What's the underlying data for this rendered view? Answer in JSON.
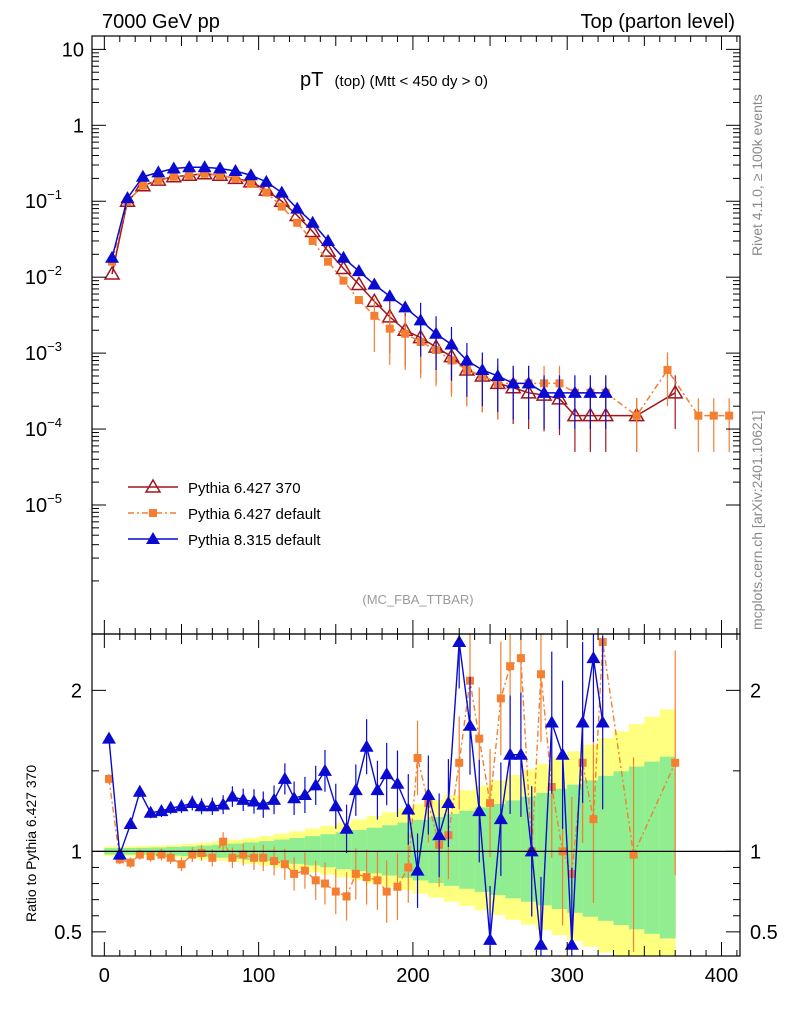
{
  "header": {
    "left": "7000 GeV pp",
    "right": "Top (parton level)"
  },
  "side_labels": {
    "rivet": "Rivet 4.1.0, ≥ 100k events",
    "mcplots": "mcplots.cern.ch [arXiv:2401.10621]"
  },
  "chart_data": {
    "type": "line",
    "title_main": "pT",
    "title_sub": "(top)  (Mtt < 450 dy > 0)",
    "analysis": "(MC_FBA_TTBAR)",
    "xlabel": "",
    "ylabel": "",
    "ratio_ylabel": "Ratio to Pythia 6.427 370",
    "xlim": [
      -8,
      412
    ],
    "ylim_log": [
      2e-07,
      15
    ],
    "ratio_ylim": [
      0.35,
      2.35
    ],
    "y_ticks": [
      {
        "label": "10",
        "exp": "",
        "value": 10
      },
      {
        "label": "1",
        "exp": "",
        "value": 1
      },
      {
        "label": "10",
        "exp": "−1",
        "value": 0.1
      },
      {
        "label": "10",
        "exp": "−2",
        "value": 0.01
      },
      {
        "label": "10",
        "exp": "−3",
        "value": 0.001
      },
      {
        "label": "10",
        "exp": "−4",
        "value": 0.0001
      },
      {
        "label": "10",
        "exp": "−5",
        "value": 1e-05
      }
    ],
    "ratio_ticks": [
      {
        "label": "2",
        "value": 2
      },
      {
        "label": "1",
        "value": 1
      },
      {
        "label": "0.5",
        "value": 0.5
      }
    ],
    "x_ticks": [
      {
        "label": "0",
        "value": 0
      },
      {
        "label": "100",
        "value": 100
      },
      {
        "label": "200",
        "value": 200
      },
      {
        "label": "300",
        "value": 300
      },
      {
        "label": "400",
        "value": 400
      }
    ],
    "legend": [
      {
        "name": "Pythia 6.427 370",
        "color": "#a0161c",
        "marker": "open-triangle"
      },
      {
        "name": "Pythia 6.427 default",
        "color": "#f47f31",
        "marker": "square"
      },
      {
        "name": "Pythia 8.315 default",
        "color": "#0a0ad0",
        "marker": "filled-triangle"
      }
    ],
    "series": [
      {
        "name": "Pythia 6.427 370",
        "x": [
          5,
          15,
          25,
          35,
          45,
          55,
          65,
          75,
          85,
          95,
          105,
          115,
          125,
          135,
          145,
          155,
          165,
          175,
          185,
          195,
          205,
          215,
          225,
          235,
          245,
          255,
          265,
          275,
          285,
          295,
          305,
          315,
          325,
          345,
          370
        ],
        "y": [
          0.011,
          0.1,
          0.16,
          0.19,
          0.21,
          0.22,
          0.23,
          0.22,
          0.2,
          0.18,
          0.14,
          0.1,
          0.065,
          0.04,
          0.022,
          0.013,
          0.008,
          0.0048,
          0.003,
          0.002,
          0.0016,
          0.0012,
          0.0009,
          0.0006,
          0.0005,
          0.0004,
          0.00035,
          0.0003,
          0.00028,
          0.00025,
          0.00015,
          0.00015,
          0.00015,
          0.00015,
          0.0003
        ]
      },
      {
        "name": "Pythia 6.427 default",
        "x": [
          5,
          15,
          25,
          35,
          45,
          55,
          65,
          75,
          85,
          95,
          105,
          115,
          125,
          135,
          145,
          155,
          165,
          175,
          185,
          195,
          205,
          215,
          225,
          235,
          245,
          255,
          265,
          275,
          285,
          295,
          305,
          315,
          325,
          345,
          365,
          385,
          395,
          405
        ],
        "y": [
          0.016,
          0.1,
          0.16,
          0.19,
          0.21,
          0.22,
          0.23,
          0.22,
          0.2,
          0.17,
          0.13,
          0.085,
          0.052,
          0.03,
          0.016,
          0.009,
          0.005,
          0.0031,
          0.0021,
          0.0018,
          0.0014,
          0.0011,
          0.0008,
          0.0006,
          0.0005,
          0.0004,
          0.0004,
          0.0004,
          0.0004,
          0.0004,
          0.0003,
          0.0003,
          0.0003,
          0.00015,
          0.0006,
          0.00015,
          0.00015,
          0.00015
        ]
      },
      {
        "name": "Pythia 8.315 default",
        "x": [
          5,
          15,
          25,
          35,
          45,
          55,
          65,
          75,
          85,
          95,
          105,
          115,
          125,
          135,
          145,
          155,
          165,
          175,
          185,
          195,
          205,
          215,
          225,
          235,
          245,
          255,
          265,
          275,
          285,
          295,
          305,
          315,
          325
        ],
        "y": [
          0.018,
          0.11,
          0.21,
          0.24,
          0.27,
          0.28,
          0.28,
          0.27,
          0.25,
          0.22,
          0.18,
          0.13,
          0.08,
          0.052,
          0.03,
          0.018,
          0.012,
          0.008,
          0.0056,
          0.004,
          0.0027,
          0.0018,
          0.0013,
          0.0008,
          0.0006,
          0.0005,
          0.0004,
          0.0004,
          0.0003,
          0.0003,
          0.0003,
          0.0003,
          0.0003
        ]
      }
    ],
    "ratio_series": [
      {
        "name": "Pythia 6.427 default",
        "x": [
          3,
          10,
          17,
          23,
          30,
          37,
          43,
          50,
          57,
          63,
          70,
          77,
          83,
          90,
          97,
          103,
          110,
          117,
          123,
          130,
          137,
          143,
          150,
          157,
          163,
          170,
          177,
          183,
          190,
          197,
          203,
          210,
          217,
          223,
          230,
          237,
          243,
          250,
          257,
          263,
          270,
          277,
          283,
          290,
          297,
          303,
          310,
          317,
          323,
          343,
          370
        ],
        "y": [
          1.45,
          0.95,
          0.93,
          0.98,
          0.97,
          0.98,
          0.96,
          0.92,
          0.98,
          0.99,
          0.96,
          1.06,
          0.96,
          0.98,
          0.96,
          0.96,
          0.94,
          0.92,
          0.86,
          0.88,
          0.82,
          0.8,
          0.75,
          0.72,
          0.86,
          0.84,
          0.82,
          0.75,
          0.78,
          0.9,
          1.58,
          1.3,
          1.04,
          1.1,
          1.55,
          2.06,
          1.7,
          1.3,
          1.95,
          2.15,
          2.2,
          1.0,
          2.1,
          1.4,
          1.0,
          0.86,
          1.55,
          1.2,
          2.3,
          0.98,
          1.55
        ]
      },
      {
        "name": "Pythia 8.315 default",
        "x": [
          3,
          10,
          17,
          23,
          30,
          37,
          43,
          50,
          57,
          63,
          70,
          77,
          83,
          90,
          97,
          103,
          110,
          117,
          123,
          130,
          137,
          143,
          150,
          157,
          163,
          170,
          177,
          183,
          190,
          197,
          203,
          210,
          217,
          223,
          230,
          237,
          243,
          250,
          257,
          263,
          270,
          277,
          283,
          290,
          297,
          303,
          310,
          317,
          323
        ],
        "y": [
          1.7,
          0.98,
          1.17,
          1.37,
          1.24,
          1.25,
          1.27,
          1.28,
          1.3,
          1.28,
          1.28,
          1.29,
          1.34,
          1.32,
          1.31,
          1.29,
          1.32,
          1.45,
          1.33,
          1.35,
          1.41,
          1.5,
          1.28,
          1.14,
          1.38,
          1.65,
          1.38,
          1.48,
          1.42,
          1.26,
          0.88,
          1.35,
          1.1,
          1.3,
          2.3,
          1.78,
          1.25,
          0.45,
          1.2,
          1.6,
          1.6,
          1.0,
          0.42,
          1.8,
          1.6,
          0.42,
          1.8,
          2.2,
          1.8
        ]
      }
    ]
  }
}
